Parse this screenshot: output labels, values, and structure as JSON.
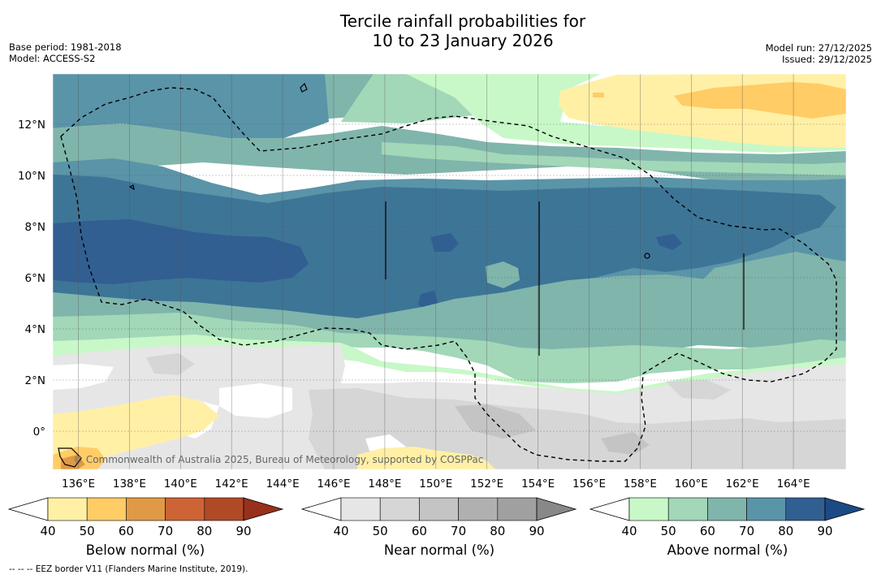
{
  "title_line1": "Tercile rainfall probabilities for",
  "title_line2": "10 to 23 January 2026",
  "base_period": "Base period: 1981-2018",
  "model": "Model: ACCESS-S2",
  "model_run": "Model run: 27/12/2025",
  "issued": "Issued: 29/12/2025",
  "copyright": "© Commonwealth of Australia 2025, Bureau of Meteorology, supported by COSPPac",
  "footer": "--  --  -- EEZ border V11 (Flanders Marine Institute, 2019).",
  "map": {
    "lon_labels": [
      "136°E",
      "138°E",
      "140°E",
      "142°E",
      "144°E",
      "146°E",
      "148°E",
      "150°E",
      "152°E",
      "154°E",
      "156°E",
      "158°E",
      "160°E",
      "162°E",
      "164°E"
    ],
    "lat_labels": [
      "12°N",
      "10°N",
      "8°N",
      "6°N",
      "4°N",
      "2°N",
      "0°"
    ]
  },
  "colorbars": [
    {
      "title": "Below normal (%)",
      "ticks": [
        "40",
        "50",
        "60",
        "70",
        "80",
        "90"
      ],
      "colors": [
        "#fff0a6",
        "#ffcc66",
        "#e09a46",
        "#cd6435",
        "#b04a26",
        "#98301c"
      ]
    },
    {
      "title": "Near normal (%)",
      "ticks": [
        "40",
        "50",
        "60",
        "70",
        "80",
        "90"
      ],
      "colors": [
        "#e6e6e6",
        "#d6d6d6",
        "#c4c4c4",
        "#b0b0b0",
        "#a0a0a0",
        "#888888"
      ]
    },
    {
      "title": "Above normal (%)",
      "ticks": [
        "40",
        "50",
        "60",
        "70",
        "80",
        "90"
      ],
      "colors": [
        "#c8f8c8",
        "#a2d7b8",
        "#80b5ac",
        "#5a94a8",
        "#315f92",
        "#1c4a86"
      ]
    }
  ]
}
